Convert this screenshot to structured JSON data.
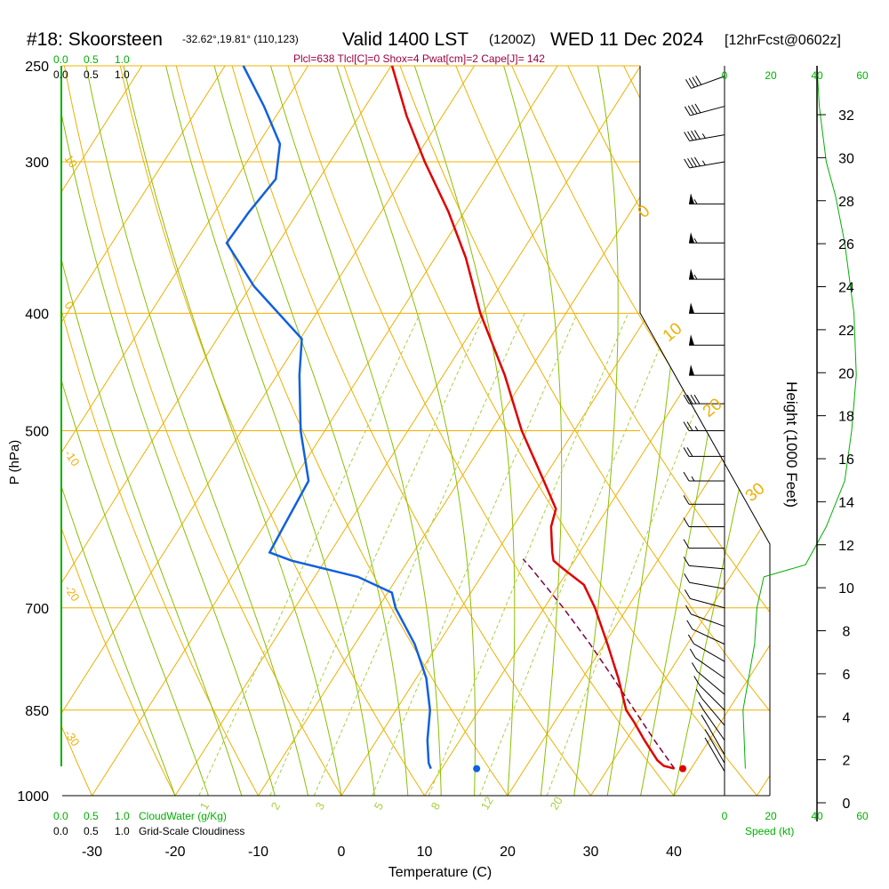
{
  "header": {
    "station": "#18: Skoorsteen",
    "coords": "-32.62°,19.81° (110,123)",
    "valid": "Valid 1400 LST",
    "utc": "(1200Z)",
    "date": "WED 11 Dec 2024",
    "forecast": "[12hrFcst@0602z]",
    "indices": "Plcl=638 Tlcl[C]=0 Shox=4 Pwat[cm]=2 Cape[J]= 142"
  },
  "axes": {
    "ylabel": "P (hPa)",
    "xlabel": "Temperature (C)",
    "height_label": "Height (1000 Feet)",
    "speed_label": "Speed (kt)",
    "cloudwater_label": "CloudWater (g/Kg)",
    "cloudiness_label": "Grid-Scale Cloudiness"
  },
  "colors": {
    "isotherm": "#f0b000",
    "dry_adiabat": "#88c000",
    "moist_adiabat": "#c0d860",
    "mixing_ratio": "#a8d040",
    "temperature": "#e00000",
    "dewpoint": "#1060e0",
    "parcel": "#800040",
    "green": "#00b000",
    "indices": "#990044"
  },
  "chart_data": {
    "type": "skew-t",
    "pressure_ticks": [
      250,
      300,
      400,
      500,
      700,
      850,
      1000
    ],
    "pressure_tick_labels": [
      "250",
      "300",
      "400",
      "500",
      "700",
      "850",
      "1000"
    ],
    "temp_ticks": [
      -30,
      -20,
      -10,
      0,
      10,
      20,
      30,
      40
    ],
    "temp_tick_labels": [
      "-30",
      "-20",
      "-10",
      "0",
      "10",
      "20",
      "30",
      "40"
    ],
    "height_ticks_kft": [
      0,
      2,
      4,
      6,
      8,
      10,
      12,
      14,
      16,
      18,
      20,
      22,
      24,
      26,
      28,
      30,
      32
    ],
    "height_tick_labels": [
      "0",
      "2",
      "4",
      "6",
      "8",
      "10",
      "12",
      "14",
      "16",
      "18",
      "20",
      "22",
      "24",
      "26",
      "28",
      "30",
      "32"
    ],
    "speed_ticks": [
      0,
      20,
      40,
      60
    ],
    "speed_tick_labels": [
      "0",
      "20",
      "40",
      "60"
    ],
    "cloud_ticks": [
      "0.0",
      "0.5",
      "1.0"
    ],
    "mixing_ratio_labels": [
      "1",
      "2",
      "3",
      "5",
      "8",
      "12",
      "20"
    ],
    "moist_labels": [
      "0",
      "10",
      "20",
      "30"
    ],
    "dry_labels": [
      "10",
      "0",
      "-10",
      "-20",
      "-30"
    ],
    "temperature": [
      {
        "p": 950,
        "t": 38.0
      },
      {
        "p": 945,
        "t": 36.5
      },
      {
        "p": 935,
        "t": 35.3
      },
      {
        "p": 900,
        "t": 32.2
      },
      {
        "p": 870,
        "t": 29.6
      },
      {
        "p": 850,
        "t": 27.7
      },
      {
        "p": 800,
        "t": 24.3
      },
      {
        "p": 750,
        "t": 20.4
      },
      {
        "p": 700,
        "t": 16.1
      },
      {
        "p": 670,
        "t": 13.0
      },
      {
        "p": 650,
        "t": 9.3
      },
      {
        "p": 640,
        "t": 7.5
      },
      {
        "p": 630,
        "t": 6.7
      },
      {
        "p": 600,
        "t": 4.6
      },
      {
        "p": 580,
        "t": 3.8
      },
      {
        "p": 550,
        "t": 0.2
      },
      {
        "p": 500,
        "t": -6.3
      },
      {
        "p": 450,
        "t": -12.6
      },
      {
        "p": 400,
        "t": -20.3
      },
      {
        "p": 360,
        "t": -26.3
      },
      {
        "p": 330,
        "t": -31.9
      },
      {
        "p": 300,
        "t": -38.6
      },
      {
        "p": 275,
        "t": -44.3
      },
      {
        "p": 250,
        "t": -49.9
      }
    ],
    "dewpoint": [
      {
        "p": 950,
        "t": 8.7
      },
      {
        "p": 940,
        "t": 8.0
      },
      {
        "p": 900,
        "t": 6.1
      },
      {
        "p": 850,
        "t": 4.1
      },
      {
        "p": 800,
        "t": 1.2
      },
      {
        "p": 750,
        "t": -2.8
      },
      {
        "p": 700,
        "t": -7.9
      },
      {
        "p": 680,
        "t": -9.5
      },
      {
        "p": 660,
        "t": -14.8
      },
      {
        "p": 640,
        "t": -24.0
      },
      {
        "p": 630,
        "t": -27.3
      },
      {
        "p": 600,
        "t": -27.6
      },
      {
        "p": 550,
        "t": -28.1
      },
      {
        "p": 500,
        "t": -32.9
      },
      {
        "p": 450,
        "t": -37.3
      },
      {
        "p": 420,
        "t": -39.8
      },
      {
        "p": 380,
        "t": -49.6
      },
      {
        "p": 350,
        "t": -56.2
      },
      {
        "p": 330,
        "t": -55.9
      },
      {
        "p": 310,
        "t": -55.2
      },
      {
        "p": 290,
        "t": -57.4
      },
      {
        "p": 270,
        "t": -62.2
      },
      {
        "p": 250,
        "t": -67.8
      }
    ],
    "parcel": [
      {
        "p": 950,
        "t": 38.0
      },
      {
        "p": 900,
        "t": 33.4
      },
      {
        "p": 850,
        "t": 28.7
      },
      {
        "p": 800,
        "t": 23.7
      },
      {
        "p": 750,
        "t": 18.3
      },
      {
        "p": 700,
        "t": 12.3
      },
      {
        "p": 650,
        "t": 5.5
      },
      {
        "p": 638,
        "t": 3.7
      }
    ],
    "surface_temperature": 39.0,
    "surface_dewpoint": 14.2,
    "surface_pressure": 950,
    "wind_barbs": [
      {
        "p": 955,
        "speed_kt": 8,
        "dir_deg": 330
      },
      {
        "p": 940,
        "speed_kt": 9,
        "dir_deg": 330
      },
      {
        "p": 925,
        "speed_kt": 10,
        "dir_deg": 330
      },
      {
        "p": 900,
        "speed_kt": 10,
        "dir_deg": 325
      },
      {
        "p": 875,
        "speed_kt": 10,
        "dir_deg": 320
      },
      {
        "p": 850,
        "speed_kt": 10,
        "dir_deg": 315
      },
      {
        "p": 825,
        "speed_kt": 10,
        "dir_deg": 310
      },
      {
        "p": 800,
        "speed_kt": 10,
        "dir_deg": 305
      },
      {
        "p": 775,
        "speed_kt": 10,
        "dir_deg": 300
      },
      {
        "p": 750,
        "speed_kt": 10,
        "dir_deg": 295
      },
      {
        "p": 725,
        "speed_kt": 10,
        "dir_deg": 290
      },
      {
        "p": 700,
        "speed_kt": 10,
        "dir_deg": 285
      },
      {
        "p": 675,
        "speed_kt": 10,
        "dir_deg": 280
      },
      {
        "p": 650,
        "speed_kt": 10,
        "dir_deg": 275
      },
      {
        "p": 625,
        "speed_kt": 10,
        "dir_deg": 270
      },
      {
        "p": 600,
        "speed_kt": 10,
        "dir_deg": 270
      },
      {
        "p": 575,
        "speed_kt": 10,
        "dir_deg": 270
      },
      {
        "p": 550,
        "speed_kt": 15,
        "dir_deg": 270
      },
      {
        "p": 525,
        "speed_kt": 20,
        "dir_deg": 270
      },
      {
        "p": 500,
        "speed_kt": 25,
        "dir_deg": 270
      },
      {
        "p": 475,
        "speed_kt": 40,
        "dir_deg": 270
      },
      {
        "p": 450,
        "speed_kt": 50,
        "dir_deg": 270
      },
      {
        "p": 425,
        "speed_kt": 50,
        "dir_deg": 270
      },
      {
        "p": 400,
        "speed_kt": 50,
        "dir_deg": 270
      },
      {
        "p": 375,
        "speed_kt": 55,
        "dir_deg": 270
      },
      {
        "p": 350,
        "speed_kt": 55,
        "dir_deg": 270
      },
      {
        "p": 325,
        "speed_kt": 55,
        "dir_deg": 270
      },
      {
        "p": 300,
        "speed_kt": 45,
        "dir_deg": 260
      },
      {
        "p": 285,
        "speed_kt": 45,
        "dir_deg": 260
      },
      {
        "p": 270,
        "speed_kt": 40,
        "dir_deg": 255
      },
      {
        "p": 255,
        "speed_kt": 40,
        "dir_deg": 250
      }
    ],
    "wind_speed_profile": [
      {
        "p": 950,
        "speed_kt": 9
      },
      {
        "p": 850,
        "speed_kt": 8
      },
      {
        "p": 750,
        "speed_kt": 13
      },
      {
        "p": 700,
        "speed_kt": 14
      },
      {
        "p": 660,
        "speed_kt": 17
      },
      {
        "p": 645,
        "speed_kt": 35
      },
      {
        "p": 600,
        "speed_kt": 44
      },
      {
        "p": 550,
        "speed_kt": 52
      },
      {
        "p": 500,
        "speed_kt": 55
      },
      {
        "p": 450,
        "speed_kt": 57
      },
      {
        "p": 400,
        "speed_kt": 56
      },
      {
        "p": 350,
        "speed_kt": 52
      },
      {
        "p": 320,
        "speed_kt": 48
      },
      {
        "p": 300,
        "speed_kt": 44
      },
      {
        "p": 270,
        "speed_kt": 41
      },
      {
        "p": 250,
        "speed_kt": 40
      }
    ],
    "pmin": 250,
    "pmax": 1000,
    "tmin": -33.5,
    "tmax": 47.0
  }
}
